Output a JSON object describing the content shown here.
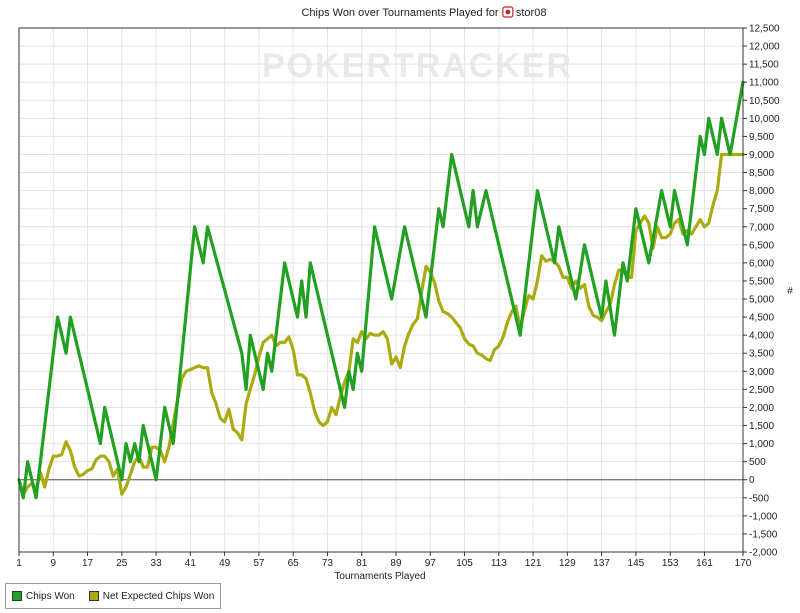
{
  "chart_data": {
    "type": "line",
    "title_prefix": "Chips Won over Tournaments Played for",
    "player": "stor08",
    "title_icon": "poker-site-icon",
    "watermark_a": "POKER",
    "watermark_b": "TRACKER",
    "xlabel": "Tournaments Played",
    "ylabel": "#",
    "xlim": [
      1,
      170
    ],
    "ylim": [
      -2000,
      12500
    ],
    "x_ticks": [
      1,
      9,
      17,
      25,
      33,
      41,
      49,
      57,
      65,
      73,
      81,
      89,
      97,
      105,
      113,
      121,
      129,
      137,
      145,
      153,
      161,
      170
    ],
    "y_ticks": [
      -2000,
      -1500,
      -1000,
      -500,
      0,
      500,
      1000,
      1500,
      2000,
      2500,
      3000,
      3500,
      4000,
      4500,
      5000,
      5500,
      6000,
      6500,
      7000,
      7500,
      8000,
      8500,
      9000,
      9500,
      10000,
      10500,
      11000,
      11500,
      12000,
      12500
    ],
    "y_tick_labels": [
      "-2,000",
      "-1,500",
      "-1,000",
      "-500",
      "0",
      "500",
      "1,000",
      "1,500",
      "2,000",
      "2,500",
      "3,000",
      "3,500",
      "4,000",
      "4,500",
      "5,000",
      "5,500",
      "6,000",
      "6,500",
      "7,000",
      "7,500",
      "8,000",
      "8,500",
      "9,000",
      "9,500",
      "10,000",
      "10,500",
      "11,000",
      "11,500",
      "12,000",
      "12,500"
    ],
    "grid": true,
    "legend_position": "bottom-left",
    "series": [
      {
        "name": "Chips Won",
        "color": "#22a022",
        "points": [
          [
            1,
            0
          ],
          [
            2,
            -500
          ],
          [
            3,
            500
          ],
          [
            5,
            -500
          ],
          [
            10,
            4500
          ],
          [
            12,
            3500
          ],
          [
            13,
            4500
          ],
          [
            20,
            1000
          ],
          [
            21,
            2000
          ],
          [
            25,
            0
          ],
          [
            26,
            1000
          ],
          [
            27,
            500
          ],
          [
            28,
            1000
          ],
          [
            29,
            500
          ],
          [
            30,
            1500
          ],
          [
            33,
            0
          ],
          [
            35,
            2000
          ],
          [
            37,
            1000
          ],
          [
            42,
            7000
          ],
          [
            44,
            6000
          ],
          [
            45,
            7000
          ],
          [
            53,
            3500
          ],
          [
            54,
            2500
          ],
          [
            55,
            4000
          ],
          [
            58,
            2500
          ],
          [
            59,
            3500
          ],
          [
            60,
            3000
          ],
          [
            63,
            6000
          ],
          [
            66,
            4500
          ],
          [
            67,
            5500
          ],
          [
            68,
            4500
          ],
          [
            69,
            6000
          ],
          [
            77,
            2000
          ],
          [
            78,
            3000
          ],
          [
            79,
            2500
          ],
          [
            80,
            3500
          ],
          [
            81,
            3000
          ],
          [
            84,
            7000
          ],
          [
            88,
            5000
          ],
          [
            91,
            7000
          ],
          [
            96,
            4500
          ],
          [
            99,
            7500
          ],
          [
            100,
            7000
          ],
          [
            102,
            9000
          ],
          [
            106,
            7000
          ],
          [
            107,
            8000
          ],
          [
            108,
            7000
          ],
          [
            110,
            8000
          ],
          [
            118,
            4000
          ],
          [
            122,
            8000
          ],
          [
            126,
            6000
          ],
          [
            127,
            7000
          ],
          [
            131,
            5000
          ],
          [
            133,
            6500
          ],
          [
            137,
            4500
          ],
          [
            138,
            5500
          ],
          [
            140,
            4000
          ],
          [
            142,
            6000
          ],
          [
            143,
            5500
          ],
          [
            145,
            7500
          ],
          [
            148,
            6000
          ],
          [
            151,
            8000
          ],
          [
            153,
            7000
          ],
          [
            154,
            8000
          ],
          [
            157,
            6500
          ],
          [
            160,
            9500
          ],
          [
            161,
            9000
          ],
          [
            162,
            10000
          ],
          [
            164,
            9000
          ],
          [
            165,
            10000
          ],
          [
            167,
            9000
          ],
          [
            170,
            11000
          ]
        ]
      },
      {
        "name": "Net Expected Chips Won",
        "color": "#aaaa11",
        "points": [
          [
            1,
            0
          ],
          [
            2,
            -400
          ],
          [
            3,
            -200
          ],
          [
            4,
            -100
          ],
          [
            5,
            -250
          ],
          [
            6,
            200
          ],
          [
            7,
            -200
          ],
          [
            8,
            300
          ],
          [
            9,
            650
          ],
          [
            10,
            650
          ],
          [
            11,
            700
          ],
          [
            12,
            1050
          ],
          [
            13,
            800
          ],
          [
            14,
            350
          ],
          [
            15,
            100
          ],
          [
            16,
            150
          ],
          [
            17,
            250
          ],
          [
            18,
            300
          ],
          [
            19,
            550
          ],
          [
            20,
            650
          ],
          [
            21,
            650
          ],
          [
            22,
            500
          ],
          [
            23,
            100
          ],
          [
            24,
            300
          ],
          [
            25,
            -400
          ],
          [
            26,
            -200
          ],
          [
            27,
            150
          ],
          [
            28,
            500
          ],
          [
            29,
            650
          ],
          [
            30,
            350
          ],
          [
            31,
            350
          ],
          [
            32,
            900
          ],
          [
            33,
            900
          ],
          [
            34,
            800
          ],
          [
            35,
            500
          ],
          [
            36,
            900
          ],
          [
            37,
            1550
          ],
          [
            38,
            2200
          ],
          [
            39,
            2800
          ],
          [
            40,
            3000
          ],
          [
            41,
            3050
          ],
          [
            42,
            3100
          ],
          [
            43,
            3150
          ],
          [
            44,
            3100
          ],
          [
            45,
            3100
          ],
          [
            46,
            2400
          ],
          [
            47,
            2100
          ],
          [
            48,
            1700
          ],
          [
            49,
            1600
          ],
          [
            50,
            1950
          ],
          [
            51,
            1400
          ],
          [
            52,
            1300
          ],
          [
            53,
            1100
          ],
          [
            54,
            2100
          ],
          [
            55,
            2500
          ],
          [
            56,
            2900
          ],
          [
            57,
            3400
          ],
          [
            58,
            3800
          ],
          [
            59,
            3900
          ],
          [
            60,
            4000
          ],
          [
            61,
            3700
          ],
          [
            62,
            3800
          ],
          [
            63,
            3800
          ],
          [
            64,
            3950
          ],
          [
            65,
            3600
          ],
          [
            66,
            2900
          ],
          [
            67,
            2900
          ],
          [
            68,
            2800
          ],
          [
            69,
            2400
          ],
          [
            70,
            1900
          ],
          [
            71,
            1600
          ],
          [
            72,
            1500
          ],
          [
            73,
            1600
          ],
          [
            74,
            2000
          ],
          [
            75,
            1800
          ],
          [
            76,
            2300
          ],
          [
            77,
            2700
          ],
          [
            78,
            3000
          ],
          [
            79,
            3900
          ],
          [
            80,
            3800
          ],
          [
            81,
            4100
          ],
          [
            82,
            3900
          ],
          [
            83,
            4050
          ],
          [
            84,
            4000
          ],
          [
            85,
            4000
          ],
          [
            86,
            4100
          ],
          [
            87,
            3900
          ],
          [
            88,
            3200
          ],
          [
            89,
            3400
          ],
          [
            90,
            3100
          ],
          [
            91,
            3700
          ],
          [
            92,
            4050
          ],
          [
            93,
            4300
          ],
          [
            94,
            4450
          ],
          [
            95,
            5200
          ],
          [
            96,
            5900
          ],
          [
            97,
            5750
          ],
          [
            98,
            5450
          ],
          [
            99,
            4950
          ],
          [
            100,
            4650
          ],
          [
            101,
            4600
          ],
          [
            102,
            4500
          ],
          [
            103,
            4350
          ],
          [
            104,
            4200
          ],
          [
            105,
            3900
          ],
          [
            106,
            3750
          ],
          [
            107,
            3700
          ],
          [
            108,
            3500
          ],
          [
            109,
            3450
          ],
          [
            110,
            3350
          ],
          [
            111,
            3300
          ],
          [
            112,
            3600
          ],
          [
            113,
            3700
          ],
          [
            114,
            3950
          ],
          [
            115,
            4350
          ],
          [
            116,
            4650
          ],
          [
            117,
            4800
          ],
          [
            118,
            4200
          ],
          [
            119,
            4700
          ],
          [
            120,
            5100
          ],
          [
            121,
            5000
          ],
          [
            122,
            5500
          ],
          [
            123,
            6200
          ],
          [
            124,
            6050
          ],
          [
            125,
            6100
          ],
          [
            126,
            6050
          ],
          [
            127,
            5900
          ],
          [
            128,
            5600
          ],
          [
            129,
            5600
          ],
          [
            130,
            5300
          ],
          [
            131,
            5500
          ],
          [
            132,
            5300
          ],
          [
            133,
            5400
          ],
          [
            134,
            4800
          ],
          [
            135,
            4550
          ],
          [
            136,
            4500
          ],
          [
            137,
            4400
          ],
          [
            138,
            4650
          ],
          [
            139,
            4850
          ],
          [
            140,
            5400
          ],
          [
            141,
            5800
          ],
          [
            142,
            5800
          ],
          [
            143,
            5600
          ],
          [
            144,
            5600
          ],
          [
            145,
            6900
          ],
          [
            146,
            7100
          ],
          [
            147,
            7300
          ],
          [
            148,
            7100
          ],
          [
            149,
            6400
          ],
          [
            150,
            7000
          ],
          [
            151,
            6700
          ],
          [
            152,
            6700
          ],
          [
            153,
            6800
          ],
          [
            154,
            7100
          ],
          [
            155,
            7200
          ],
          [
            156,
            6800
          ],
          [
            157,
            6900
          ],
          [
            158,
            6800
          ],
          [
            159,
            7000
          ],
          [
            160,
            7200
          ],
          [
            161,
            7000
          ],
          [
            162,
            7100
          ],
          [
            163,
            7600
          ],
          [
            164,
            8000
          ],
          [
            165,
            9000
          ],
          [
            166,
            9000
          ],
          [
            167,
            9000
          ],
          [
            168,
            9000
          ],
          [
            169,
            9000
          ],
          [
            170,
            9000
          ]
        ]
      }
    ]
  }
}
